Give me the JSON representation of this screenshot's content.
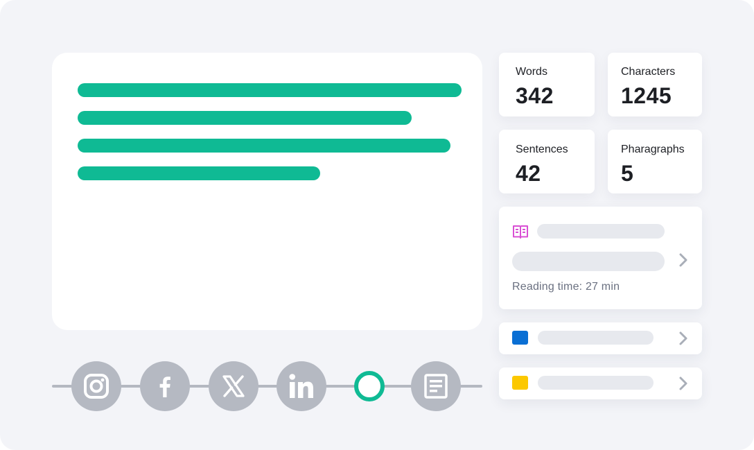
{
  "editor": {
    "placeholder_lines": 4
  },
  "stats": {
    "words": {
      "label": "Words",
      "value": "342"
    },
    "characters": {
      "label": "Characters",
      "value": "1245"
    },
    "sentences": {
      "label": "Sentences",
      "value": "42"
    },
    "paragraphs": {
      "label": "Pharagraphs",
      "value": "5"
    }
  },
  "reading_card": {
    "icon": "book-open-icon",
    "reading_time": "Reading time: 27 min"
  },
  "list_cards": [
    {
      "icon": "blue-square",
      "color": "#0a6fd4"
    },
    {
      "icon": "yellow-square",
      "color": "#fcc800"
    }
  ],
  "share_bar": {
    "icons": [
      "instagram-icon",
      "facebook-icon",
      "x-icon",
      "linkedin-icon",
      "selected-ring",
      "document-icon"
    ]
  },
  "colors": {
    "accent": "#0fba94",
    "background": "#f3f4f8",
    "icon_grey": "#b5b9c2",
    "book_icon": "#d94fd4"
  }
}
